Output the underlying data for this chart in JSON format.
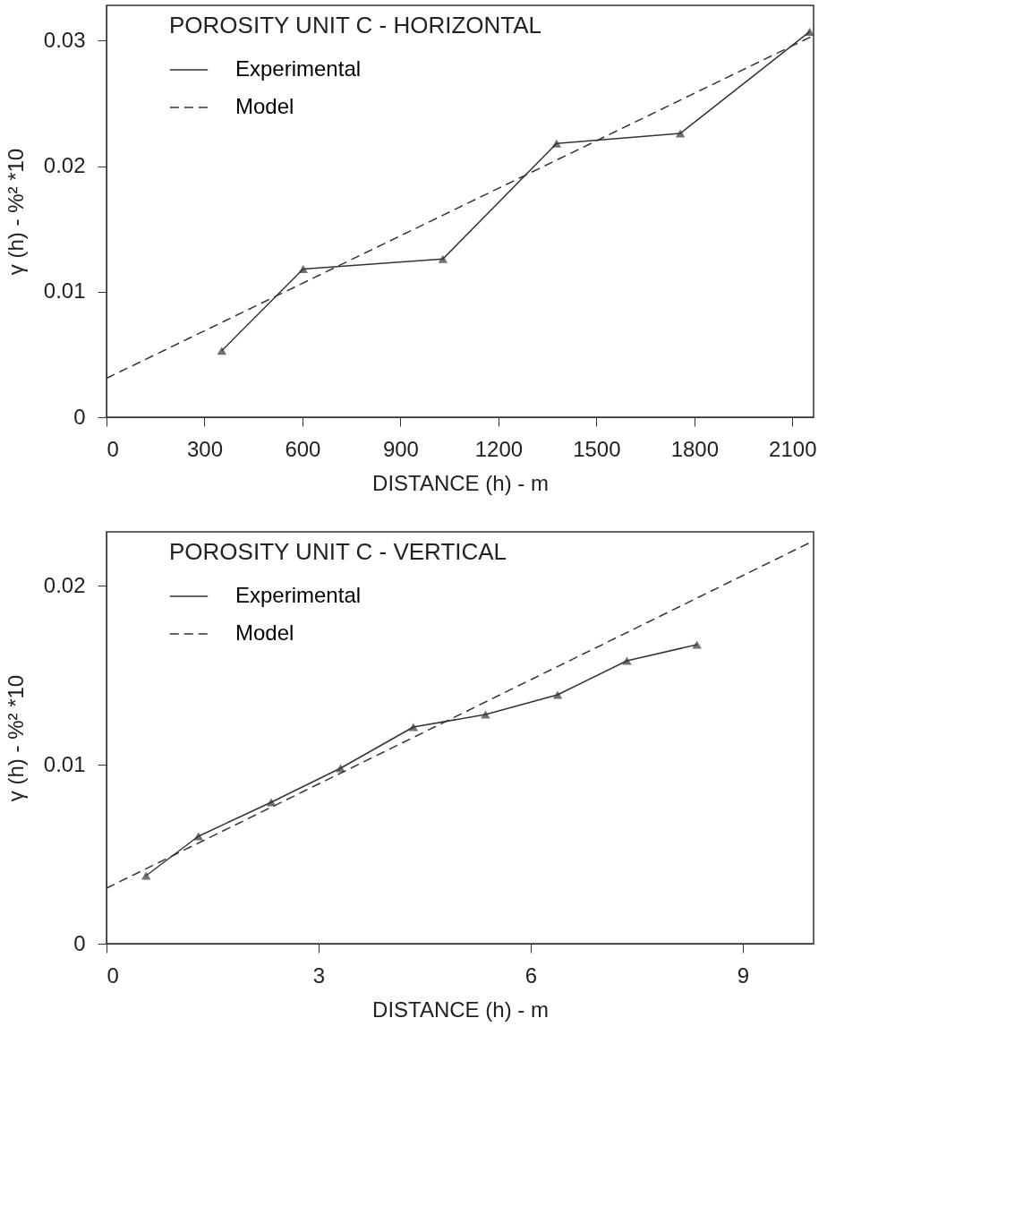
{
  "chart_data": [
    {
      "type": "line",
      "title": "POROSITY UNIT C - HORIZONTAL",
      "xlabel": "DISTANCE (h) - m",
      "ylabel": "γ (h) - %² *10",
      "xlim": [
        0,
        2165
      ],
      "xticks": [
        0,
        300,
        600,
        900,
        1200,
        1500,
        1800,
        2100
      ],
      "ylim": [
        0,
        0.0328
      ],
      "yticks": [
        0,
        0.01,
        0.02,
        0.03
      ],
      "grid": false,
      "legend": "top left",
      "series": [
        {
          "name": "Experimental",
          "color": "#333333",
          "marker": "triangle",
          "line_style": "solid",
          "x": [
            353,
            602,
            1030,
            1378,
            1757,
            2153
          ],
          "values": [
            0.0053,
            0.0118,
            0.0126,
            0.0218,
            0.0226,
            0.0307
          ]
        },
        {
          "name": "Model",
          "color": "#333333",
          "marker": "none",
          "line_style": "dashed",
          "x": [
            0,
            2165
          ],
          "values": [
            0.0031,
            0.0304
          ]
        }
      ]
    },
    {
      "type": "line",
      "title": "POROSITY UNIT C - VERTICAL",
      "xlabel": "DISTANCE (h) - m",
      "ylabel": "γ (h) - %² *10",
      "xlim": [
        0,
        10
      ],
      "xticks": [
        0,
        3,
        6,
        9
      ],
      "ylim": [
        0,
        0.023
      ],
      "yticks": [
        0,
        0.01,
        0.02
      ],
      "grid": false,
      "legend": "top left",
      "series": [
        {
          "name": "Experimental",
          "color": "#333333",
          "marker": "triangle",
          "line_style": "solid",
          "x": [
            0.56,
            1.3,
            2.33,
            3.31,
            4.34,
            5.36,
            6.38,
            7.36,
            8.35
          ],
          "values": [
            0.0038,
            0.006,
            0.0079,
            0.0098,
            0.0121,
            0.0128,
            0.0139,
            0.0158,
            0.0167
          ]
        },
        {
          "name": "Model",
          "color": "#333333",
          "marker": "none",
          "line_style": "dashed",
          "x": [
            0,
            10
          ],
          "values": [
            0.0031,
            0.0225
          ]
        }
      ]
    }
  ]
}
